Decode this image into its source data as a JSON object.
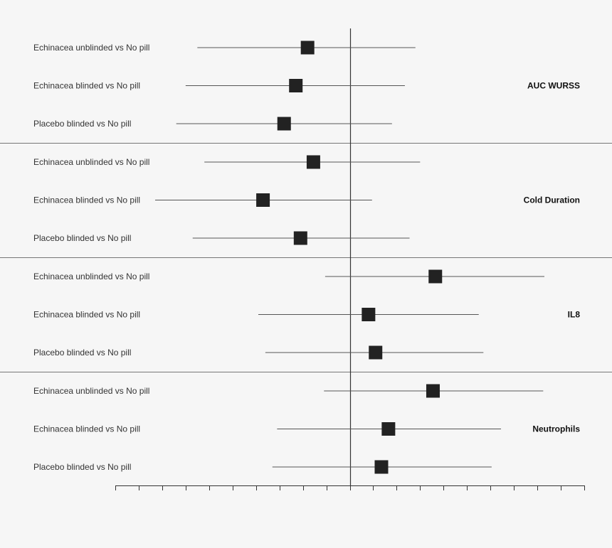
{
  "chart_data": {
    "type": "forest",
    "title": "",
    "xlabel": "",
    "ylabel": "",
    "xlim": [
      -10,
      10
    ],
    "reference_line": 0,
    "tick_step": 1,
    "tick_labels_shown": false,
    "marker": "square",
    "colors": {
      "marker": "#222222",
      "line": "#555555",
      "axis": "#333333",
      "divider": "#777777"
    },
    "groups": [
      {
        "name": "AUC WURSS",
        "rows": [
          {
            "label": "Echinacea unblinded vs No pill",
            "estimate": -1.8,
            "low": -6.5,
            "high": 2.8
          },
          {
            "label": "Echinacea blinded vs No pill",
            "estimate": -2.3,
            "low": -7.0,
            "high": 2.35
          },
          {
            "label": "Placebo blinded vs No pill",
            "estimate": -2.8,
            "low": -7.4,
            "high": 1.8
          }
        ]
      },
      {
        "name": "Cold Duration",
        "rows": [
          {
            "label": "Echinacea unblinded vs No pill",
            "estimate": -1.55,
            "low": -6.2,
            "high": 3.0
          },
          {
            "label": "Echinacea blinded vs No pill",
            "estimate": -3.7,
            "low": -8.3,
            "high": 0.95
          },
          {
            "label": "Placebo blinded vs No pill",
            "estimate": -2.1,
            "low": -6.7,
            "high": 2.55
          }
        ]
      },
      {
        "name": "IL8",
        "rows": [
          {
            "label": "Echinacea unblinded vs No pill",
            "estimate": 3.65,
            "low": -1.05,
            "high": 8.3
          },
          {
            "label": "Echinacea blinded vs No pill",
            "estimate": 0.8,
            "low": -3.9,
            "high": 5.5
          },
          {
            "label": "Placebo blinded vs No pill",
            "estimate": 1.1,
            "low": -3.6,
            "high": 5.7
          }
        ]
      },
      {
        "name": "Neutrophils",
        "rows": [
          {
            "label": "Echinacea unblinded vs No pill",
            "estimate": 3.55,
            "low": -1.1,
            "high": 8.25
          },
          {
            "label": "Echinacea blinded vs No pill",
            "estimate": 1.65,
            "low": -3.1,
            "high": 6.45
          },
          {
            "label": "Placebo blinded vs No pill",
            "estimate": 1.35,
            "low": -3.3,
            "high": 6.05
          }
        ]
      }
    ]
  }
}
